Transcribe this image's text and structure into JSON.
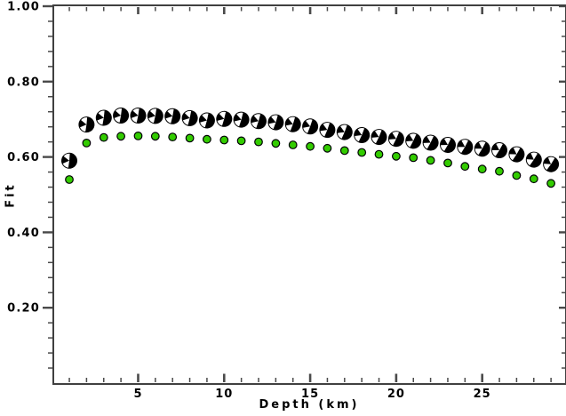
{
  "chart_data": {
    "type": "scatter",
    "title": "",
    "xlabel": "Depth (km)",
    "ylabel": "Fit",
    "xlim": [
      0.12,
      29.82
    ],
    "ylim": [
      0.0,
      1.0
    ],
    "grid": false,
    "frame": "box-with-mirrored-ticks",
    "x_major_ticks": [
      5,
      10,
      15,
      20,
      25
    ],
    "x_major_tick_labels": [
      "5",
      "10",
      "15",
      "20",
      "25"
    ],
    "x_minor_tick_step": 1,
    "y_major_ticks": [
      0.2,
      0.4,
      0.6,
      0.8,
      1.0
    ],
    "y_major_tick_labels": [
      "0.20",
      "0.40",
      "0.60",
      "0.80",
      "1.00"
    ],
    "y_minor_tick_step": 0.04,
    "x": [
      1,
      2,
      3,
      4,
      5,
      6,
      7,
      8,
      9,
      10,
      11,
      12,
      13,
      14,
      15,
      16,
      17,
      18,
      19,
      20,
      21,
      22,
      23,
      24,
      25,
      26,
      27,
      28,
      29
    ],
    "series": [
      {
        "name": "focal-mechanism-fit",
        "marker": "beachball",
        "color": "#000000",
        "wedge_color": "#ffffff",
        "marker_radius": 9,
        "values": [
          0.59,
          0.686,
          0.704,
          0.71,
          0.71,
          0.709,
          0.708,
          0.703,
          0.697,
          0.701,
          0.699,
          0.695,
          0.692,
          0.687,
          0.681,
          0.672,
          0.666,
          0.658,
          0.653,
          0.648,
          0.643,
          0.638,
          0.632,
          0.627,
          0.622,
          0.618,
          0.607,
          0.593,
          0.581
        ]
      },
      {
        "name": "green-circle-fit",
        "marker": "circle",
        "color": "#33cc00",
        "outline_color": "#000000",
        "marker_radius": 4.3,
        "values": [
          0.54,
          0.637,
          0.652,
          0.655,
          0.656,
          0.655,
          0.653,
          0.65,
          0.647,
          0.645,
          0.643,
          0.64,
          0.636,
          0.632,
          0.628,
          0.623,
          0.617,
          0.612,
          0.607,
          0.602,
          0.598,
          0.591,
          0.584,
          0.575,
          0.568,
          0.562,
          0.551,
          0.542,
          0.53
        ]
      }
    ],
    "colors": {
      "frame": "#404040",
      "tick": "#4a4a4a",
      "text": "#000000",
      "background": "#ffffff"
    }
  }
}
